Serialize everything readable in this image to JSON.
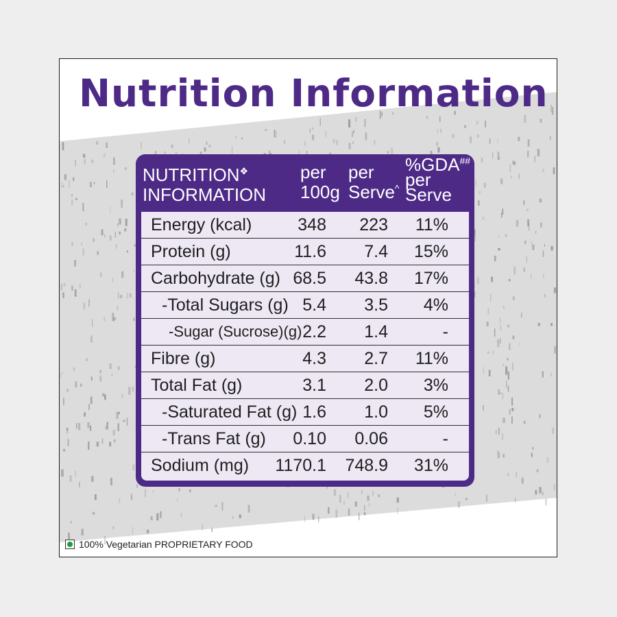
{
  "title": "Nutrition Information",
  "header": {
    "col1": [
      "NUTRITION",
      "INFORMATION"
    ],
    "col1_mark": "❖",
    "col2": [
      "per",
      "100g"
    ],
    "col3": [
      "per",
      "Serve"
    ],
    "col3_mark": "^",
    "col4": [
      "%GDA",
      "per",
      "Serve"
    ],
    "col4_mark": "##"
  },
  "rows": [
    {
      "label": "Energy (kcal)",
      "per_100g": "348",
      "per_serve": "223",
      "gda": "11%",
      "indent": 0
    },
    {
      "label": "Protein (g)",
      "per_100g": "11.6",
      "per_serve": "7.4",
      "gda": "15%",
      "indent": 0
    },
    {
      "label": "Carbohydrate (g)",
      "per_100g": "68.5",
      "per_serve": "43.8",
      "gda": "17%",
      "indent": 0
    },
    {
      "label": "-Total Sugars (g)",
      "per_100g": "5.4",
      "per_serve": "3.5",
      "gda": "4%",
      "indent": 1
    },
    {
      "label": "-Sugar (Sucrose)(g)",
      "per_100g": "2.2",
      "per_serve": "1.4",
      "gda": "-",
      "indent": 2
    },
    {
      "label": "Fibre (g)",
      "per_100g": "4.3",
      "per_serve": "2.7",
      "gda": "11%",
      "indent": 0
    },
    {
      "label": "Total Fat (g)",
      "per_100g": "3.1",
      "per_serve": "2.0",
      "gda": "3%",
      "indent": 0
    },
    {
      "label": "-Saturated Fat (g)",
      "per_100g": "1.6",
      "per_serve": "1.0",
      "gda": "5%",
      "indent": 1
    },
    {
      "label": "-Trans Fat (g)",
      "per_100g": "0.10",
      "per_serve": "0.06",
      "gda": "-",
      "indent": 1
    },
    {
      "label": "Sodium (mg)",
      "per_100g": "1170.1",
      "per_serve": "748.9",
      "gda": "31%",
      "indent": 0
    }
  ],
  "footer": "100% Vegetarian PROPRIETARY FOOD",
  "colors": {
    "brand_purple": "#4e2a87",
    "table_body": "#ede8f4",
    "veg_green": "#1f9b3a"
  }
}
